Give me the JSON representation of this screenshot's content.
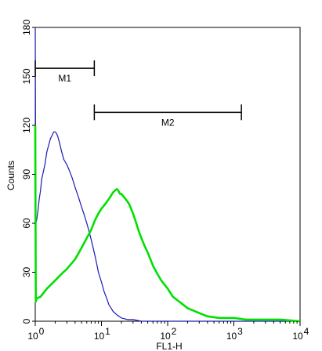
{
  "chart_data": {
    "type": "line",
    "x_scale": "log",
    "xlim": [
      1,
      10000
    ],
    "ylim": [
      0,
      180
    ],
    "xlabel": "FL1-H",
    "ylabel": "Counts",
    "y_ticks": [
      0,
      30,
      60,
      90,
      120,
      150,
      180
    ],
    "x_ticks": [
      {
        "base": "10",
        "exp": "0"
      },
      {
        "base": "10",
        "exp": "1"
      },
      {
        "base": "10",
        "exp": "2"
      },
      {
        "base": "10",
        "exp": "3"
      },
      {
        "base": "10",
        "exp": "4"
      }
    ],
    "grid": false,
    "gates": [
      {
        "label": "M1",
        "x_start": 1,
        "x_end": 7.8,
        "y": 155
      },
      {
        "label": "M2",
        "x_start": 7.8,
        "x_end": 1300,
        "y": 128
      }
    ],
    "series": [
      {
        "color": "#1a1ab4",
        "x": [
          1,
          1.02,
          1.05,
          1.1,
          1.15,
          1.2,
          1.25,
          1.3,
          1.4,
          1.5,
          1.6,
          1.7,
          1.8,
          1.9,
          2.0,
          2.1,
          2.2,
          2.3,
          2.5,
          2.7,
          3.0,
          3.3,
          3.6,
          4.0,
          4.5,
          5.0,
          5.5,
          6.0,
          6.5,
          7.0,
          7.5,
          8.0,
          8.5,
          9.0,
          10,
          11,
          12,
          13,
          14,
          15,
          17,
          20,
          25,
          30,
          40,
          60,
          100,
          200,
          500,
          1000,
          3000,
          10000
        ],
        "y": [
          180,
          60,
          62,
          68,
          75,
          80,
          87,
          90,
          96,
          104,
          108,
          112,
          114,
          116,
          116,
          115,
          113,
          110,
          104,
          99,
          96,
          92,
          88,
          82,
          76,
          70,
          65,
          60,
          55,
          50,
          45,
          40,
          35,
          30,
          24,
          18,
          14,
          10,
          8,
          6,
          4,
          2,
          1,
          1,
          0,
          0,
          0,
          0,
          0,
          0,
          0,
          0
        ]
      },
      {
        "color": "#00e000",
        "x": [
          1,
          1.02,
          1.05,
          1.2,
          1.5,
          2.0,
          2.5,
          3.0,
          4.0,
          5.0,
          6.0,
          7.0,
          8.0,
          9.0,
          10,
          11,
          12,
          13,
          14,
          15,
          16,
          17,
          18,
          19,
          20,
          22,
          24,
          26,
          28,
          30,
          33,
          36,
          40,
          45,
          50,
          60,
          70,
          80,
          100,
          120,
          150,
          200,
          300,
          400,
          600,
          1000,
          1500,
          2000,
          3000,
          5000,
          10000
        ],
        "y": [
          120,
          12,
          14,
          15,
          20,
          25,
          29,
          32,
          38,
          45,
          51,
          56,
          62,
          66,
          69,
          71,
          73,
          75,
          77,
          79,
          80,
          81,
          80,
          78,
          78,
          76,
          74,
          72,
          69,
          66,
          61,
          56,
          51,
          46,
          42,
          34,
          29,
          25,
          20,
          15,
          12,
          8,
          5,
          3,
          2,
          2,
          1,
          1,
          1,
          1,
          0
        ]
      }
    ]
  }
}
